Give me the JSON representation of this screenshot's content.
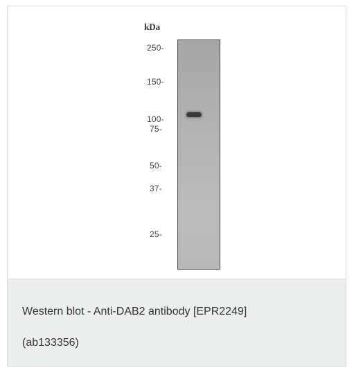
{
  "figure": {
    "unit_label": "kDa",
    "markers": [
      {
        "label": "250-",
        "kda": 250
      },
      {
        "label": "150-",
        "kda": 150
      },
      {
        "label": "100-",
        "kda": 100
      },
      {
        "label": "75-",
        "kda": 75
      },
      {
        "label": "50-",
        "kda": 50
      },
      {
        "label": "37-",
        "kda": 37
      },
      {
        "label": "25-",
        "kda": 25
      }
    ],
    "band_kda": 96
  },
  "caption": {
    "line1": "Western blot - Anti-DAB2 antibody [EPR2249]",
    "line2": "(ab133356)"
  }
}
